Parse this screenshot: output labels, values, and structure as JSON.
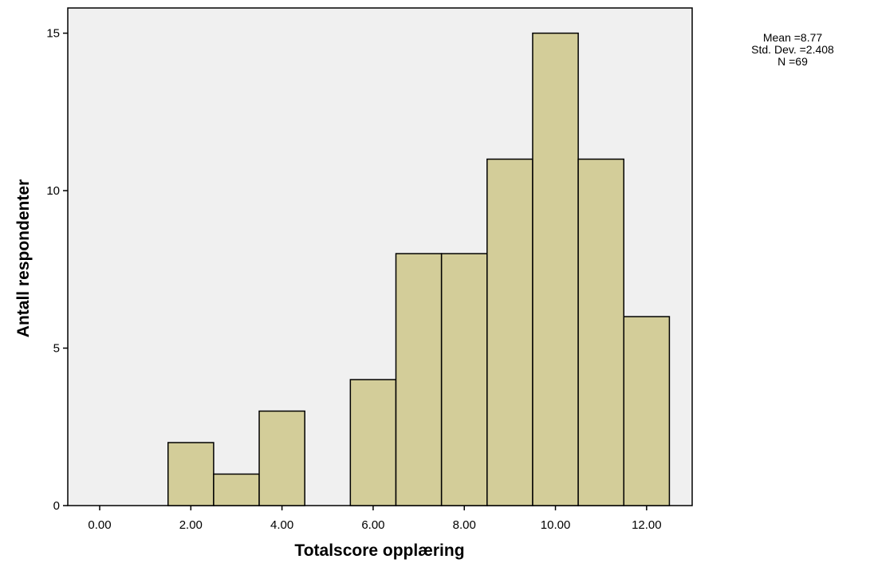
{
  "chart_data": {
    "type": "bar",
    "histogram": true,
    "bin_width": 1,
    "x": [
      1,
      2,
      3,
      4,
      5,
      6,
      7,
      8,
      9,
      10,
      11,
      12
    ],
    "values": [
      0,
      2,
      1,
      3,
      0,
      4,
      8,
      8,
      11,
      15,
      11,
      6
    ],
    "xlabel": "Totalscore opplæring",
    "ylabel": "Antall respondenter",
    "xticks": [
      0,
      2,
      4,
      6,
      8,
      10,
      12
    ],
    "xtick_labels": [
      "0.00",
      "2.00",
      "4.00",
      "6.00",
      "8.00",
      "10.00",
      "12.00"
    ],
    "yticks": [
      0,
      5,
      10,
      15
    ],
    "ytick_labels": [
      "0",
      "5",
      "10",
      "15"
    ],
    "xlim": [
      -0.7,
      13.0
    ],
    "ylim": [
      0,
      15.8
    ],
    "grid": false,
    "colors": {
      "bar_fill": "#d3cd99",
      "bar_stroke": "#000000",
      "plot_background": "#f0f0f0"
    },
    "stats": {
      "placement": "top-right",
      "lines": [
        "Mean =8.77",
        "Std. Dev. =2.408",
        "N =69"
      ]
    }
  }
}
